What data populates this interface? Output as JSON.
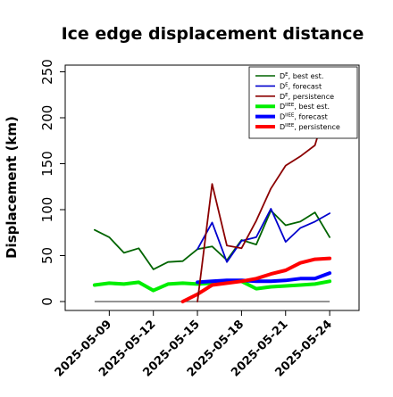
{
  "chart_data": {
    "type": "line",
    "title": "Ice edge displacement distance",
    "ylabel": "Displacement (km)",
    "xlabel": "",
    "ylim": [
      0,
      260
    ],
    "xlim": [
      "2025-05-06",
      "2025-05-26"
    ],
    "yticks": [
      "0",
      "50",
      "100",
      "150",
      "200",
      "250"
    ],
    "xticks": [
      "2025-05-09",
      "2025-05-12",
      "2025-05-15",
      "2025-05-18",
      "2025-05-21",
      "2025-05-24"
    ],
    "highlighted_xtick": "2025-05-15",
    "highlight_color": "#228b22",
    "grid": false,
    "legend_position": "top-right",
    "reference_line": {
      "value": 0,
      "from": "2025-05-08",
      "to": "2025-05-24",
      "color": "#555555"
    },
    "series": [
      {
        "name": "D^E, best est.",
        "legend_main": "D",
        "legend_sup": "E",
        "legend_sub": ", best est.",
        "color": "#006400",
        "width": "thin",
        "x": [
          "2025-05-08",
          "2025-05-09",
          "2025-05-10",
          "2025-05-11",
          "2025-05-12",
          "2025-05-13",
          "2025-05-14",
          "2025-05-15",
          "2025-05-16",
          "2025-05-17",
          "2025-05-18",
          "2025-05-19",
          "2025-05-20",
          "2025-05-21",
          "2025-05-22",
          "2025-05-23",
          "2025-05-24"
        ],
        "y": [
          78,
          70,
          53,
          58,
          35,
          43,
          44,
          57,
          60,
          45,
          67,
          62,
          99,
          83,
          87,
          97,
          70
        ]
      },
      {
        "name": "D^E, forecast",
        "legend_main": "D",
        "legend_sup": "E",
        "legend_sub": ", forecast",
        "color": "#0000cd",
        "width": "thin",
        "x": [
          "2025-05-15",
          "2025-05-16",
          "2025-05-17",
          "2025-05-18",
          "2025-05-19",
          "2025-05-20",
          "2025-05-21",
          "2025-05-22",
          "2025-05-23",
          "2025-05-24"
        ],
        "y": [
          57,
          86,
          43,
          66,
          70,
          101,
          65,
          80,
          87,
          96
        ]
      },
      {
        "name": "D^E, persistence",
        "legend_main": "D",
        "legend_sup": "E",
        "legend_sub": ", persistence",
        "color": "#8b0000",
        "width": "thin",
        "x": [
          "2025-05-15",
          "2025-05-16",
          "2025-05-17",
          "2025-05-18",
          "2025-05-19",
          "2025-05-20",
          "2025-05-21",
          "2025-05-22",
          "2025-05-23",
          "2025-05-24"
        ],
        "y": [
          0,
          128,
          61,
          58,
          88,
          123,
          148,
          158,
          170,
          223
        ]
      },
      {
        "name": "D^IIEE, best est.",
        "legend_main": "D",
        "legend_sup": "IIEE",
        "legend_sub": ", best est.",
        "color": "#00ee00",
        "width": "thick",
        "x": [
          "2025-05-08",
          "2025-05-09",
          "2025-05-10",
          "2025-05-11",
          "2025-05-12",
          "2025-05-13",
          "2025-05-14",
          "2025-05-15",
          "2025-05-16",
          "2025-05-17",
          "2025-05-18",
          "2025-05-19",
          "2025-05-20",
          "2025-05-21",
          "2025-05-22",
          "2025-05-23",
          "2025-05-24"
        ],
        "y": [
          18,
          20,
          19,
          21,
          12,
          19,
          20,
          19,
          20,
          22,
          22,
          14,
          16,
          17,
          18,
          19,
          22
        ]
      },
      {
        "name": "D^IIEE, forecast",
        "legend_main": "D",
        "legend_sup": "IIEE",
        "legend_sub": ", forecast",
        "color": "#0000ff",
        "width": "thick",
        "x": [
          "2025-05-15",
          "2025-05-16",
          "2025-05-17",
          "2025-05-18",
          "2025-05-19",
          "2025-05-20",
          "2025-05-21",
          "2025-05-22",
          "2025-05-23",
          "2025-05-24"
        ],
        "y": [
          21,
          22,
          23,
          23,
          22,
          22,
          23,
          25,
          25,
          31
        ]
      },
      {
        "name": "D^IIEE, persistence",
        "legend_main": "D",
        "legend_sup": "IIEE",
        "legend_sub": ", persistence",
        "color": "#ff0000",
        "width": "thick",
        "x": [
          "2025-05-14",
          "2025-05-15",
          "2025-05-16",
          "2025-05-17",
          "2025-05-18",
          "2025-05-19",
          "2025-05-20",
          "2025-05-21",
          "2025-05-22",
          "2025-05-23",
          "2025-05-24"
        ],
        "y": [
          0,
          8,
          18,
          20,
          22,
          25,
          30,
          34,
          42,
          46,
          47
        ]
      }
    ]
  }
}
